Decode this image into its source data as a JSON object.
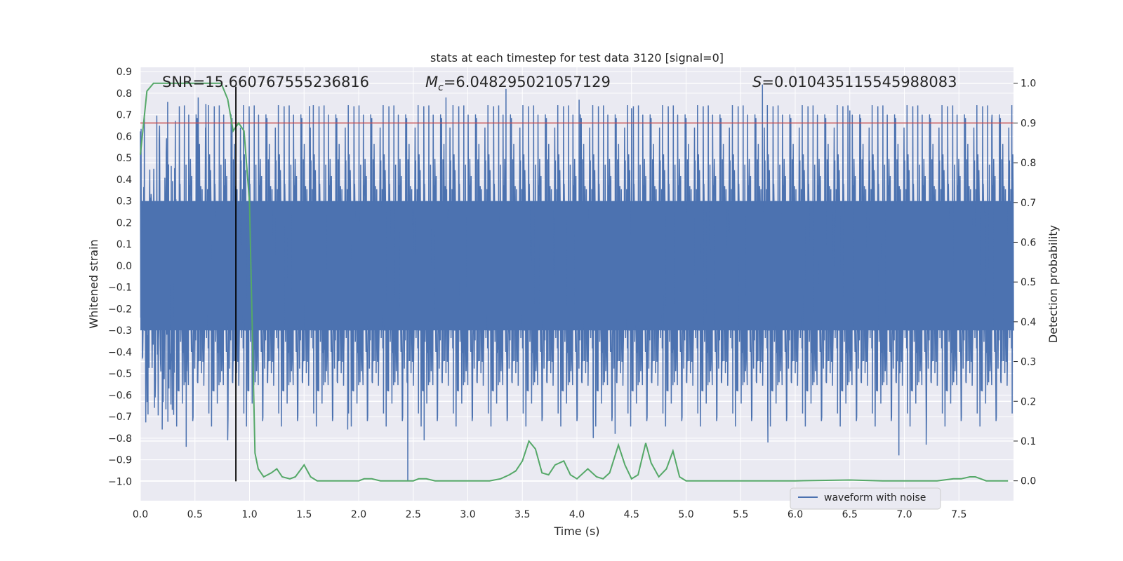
{
  "chart_data": {
    "type": "line",
    "title": "stats at each timestep for test data 3120 [signal=0]",
    "xlabel": "Time (s)",
    "ylabel": "Whitened strain",
    "ylabel_right": "Detection probability",
    "xlim": [
      0,
      8
    ],
    "ylim": [
      -1.09,
      0.92
    ],
    "ylim_right": [
      -0.05,
      1.04
    ],
    "x_ticks": [
      "0.0",
      "0.5",
      "1.0",
      "1.5",
      "2.0",
      "2.5",
      "3.0",
      "3.5",
      "4.0",
      "4.5",
      "5.0",
      "5.5",
      "6.0",
      "6.5",
      "7.0",
      "7.5"
    ],
    "x_tick_values": [
      0,
      0.5,
      1,
      1.5,
      2,
      2.5,
      3,
      3.5,
      4,
      4.5,
      5,
      5.5,
      6,
      6.5,
      7,
      7.5
    ],
    "y_ticks": [
      "0.9",
      "0.8",
      "0.7",
      "0.6",
      "0.5",
      "0.4",
      "0.3",
      "0.2",
      "0.1",
      "0.0",
      "−0.1",
      "−0.2",
      "−0.3",
      "−0.4",
      "−0.5",
      "−0.6",
      "−0.7",
      "−0.8",
      "−0.9",
      "−1.0"
    ],
    "y_tick_values": [
      0.9,
      0.8,
      0.7,
      0.6,
      0.5,
      0.4,
      0.3,
      0.2,
      0.1,
      0.0,
      -0.1,
      -0.2,
      -0.3,
      -0.4,
      -0.5,
      -0.6,
      -0.7,
      -0.8,
      -0.9,
      -1.0
    ],
    "y_right_ticks": [
      "1.0",
      "0.9",
      "0.8",
      "0.7",
      "0.6",
      "0.5",
      "0.4",
      "0.3",
      "0.2",
      "0.1",
      "0.0"
    ],
    "y_right_tick_values": [
      1.0,
      0.9,
      0.8,
      0.7,
      0.6,
      0.5,
      0.4,
      0.3,
      0.2,
      0.1,
      0.0
    ],
    "annotations": {
      "snr": "SNR=15.660767555236816",
      "mc_symbol": "M",
      "mc_sub": "c",
      "mc_value": "=6.048295021057129",
      "s_symbol": "S",
      "s_value": "=0.010435115545988083"
    },
    "threshold_line": {
      "y_right": 0.9,
      "color": "#c44e52"
    },
    "vertical_marker": {
      "x": 0.875,
      "y_from": -1.0,
      "y_to": 0.83,
      "color": "#000000"
    },
    "legend": {
      "label": "waveform with noise",
      "position": "lower-right"
    },
    "series": [
      {
        "name": "waveform with noise",
        "axis": "left",
        "color": "#4c72b0",
        "noise_envelope": {
          "typical_upper": 0.3,
          "typical_lower": -0.3,
          "peaks": [
            {
              "x": 0.25,
              "y": 0.76
            },
            {
              "x": 0.53,
              "y": 0.78
            },
            {
              "x": 0.6,
              "y": 0.75
            },
            {
              "x": 1.55,
              "y": 0.74
            },
            {
              "x": 2.8,
              "y": 0.78
            },
            {
              "x": 3.35,
              "y": 0.82
            },
            {
              "x": 4.02,
              "y": 0.77
            },
            {
              "x": 4.5,
              "y": 0.73
            },
            {
              "x": 5.7,
              "y": 0.84
            },
            {
              "x": 6.5,
              "y": 0.72
            },
            {
              "x": 7.8,
              "y": 0.67
            }
          ],
          "troughs": [
            {
              "x": 0.07,
              "y": -0.69
            },
            {
              "x": 0.2,
              "y": -0.76
            },
            {
              "x": 0.42,
              "y": -0.84
            },
            {
              "x": 0.8,
              "y": -0.81
            },
            {
              "x": 1.9,
              "y": -0.76
            },
            {
              "x": 2.45,
              "y": -1.0
            },
            {
              "x": 2.6,
              "y": -0.81
            },
            {
              "x": 4.15,
              "y": -0.8
            },
            {
              "x": 4.35,
              "y": -0.78
            },
            {
              "x": 5.75,
              "y": -0.82
            },
            {
              "x": 6.95,
              "y": -0.88
            },
            {
              "x": 7.2,
              "y": -0.83
            }
          ]
        }
      },
      {
        "name": "detection probability",
        "axis": "right",
        "color": "#55a868",
        "x": [
          0.0,
          0.06,
          0.12,
          0.2,
          0.3,
          0.4,
          0.5,
          0.6,
          0.7,
          0.74,
          0.8,
          0.85,
          0.9,
          0.95,
          1.0,
          1.05,
          1.08,
          1.13,
          1.2,
          1.25,
          1.3,
          1.37,
          1.42,
          1.5,
          1.56,
          1.62,
          1.75,
          1.9,
          2.0,
          2.05,
          2.12,
          2.2,
          2.3,
          2.4,
          2.5,
          2.55,
          2.62,
          2.7,
          2.8,
          3.0,
          3.2,
          3.3,
          3.38,
          3.44,
          3.5,
          3.56,
          3.62,
          3.68,
          3.74,
          3.8,
          3.88,
          3.94,
          4.0,
          4.1,
          4.18,
          4.24,
          4.3,
          4.38,
          4.44,
          4.5,
          4.56,
          4.63,
          4.68,
          4.75,
          4.82,
          4.88,
          4.94,
          5.0,
          5.2,
          5.5,
          6.0,
          6.5,
          6.8,
          7.0,
          7.3,
          7.45,
          7.52,
          7.6,
          7.65,
          7.75,
          7.85,
          7.95
        ],
        "values": [
          0.82,
          0.98,
          1.0,
          1.0,
          1.0,
          1.0,
          1.0,
          1.0,
          1.0,
          1.0,
          0.96,
          0.88,
          0.9,
          0.88,
          0.7,
          0.07,
          0.03,
          0.01,
          0.02,
          0.03,
          0.01,
          0.005,
          0.01,
          0.04,
          0.01,
          0.0,
          0.0,
          0.0,
          0.0,
          0.005,
          0.005,
          0.0,
          0.0,
          0.0,
          0.0,
          0.005,
          0.005,
          0.0,
          0.0,
          0.0,
          0.0,
          0.005,
          0.015,
          0.025,
          0.05,
          0.1,
          0.08,
          0.02,
          0.015,
          0.04,
          0.05,
          0.015,
          0.005,
          0.03,
          0.01,
          0.005,
          0.02,
          0.09,
          0.04,
          0.005,
          0.015,
          0.095,
          0.045,
          0.01,
          0.03,
          0.075,
          0.01,
          0.0,
          0.0,
          0.0,
          0.0,
          0.002,
          0.0,
          0.0,
          0.0,
          0.005,
          0.005,
          0.01,
          0.01,
          0.0,
          0.0,
          0.0
        ]
      }
    ]
  }
}
